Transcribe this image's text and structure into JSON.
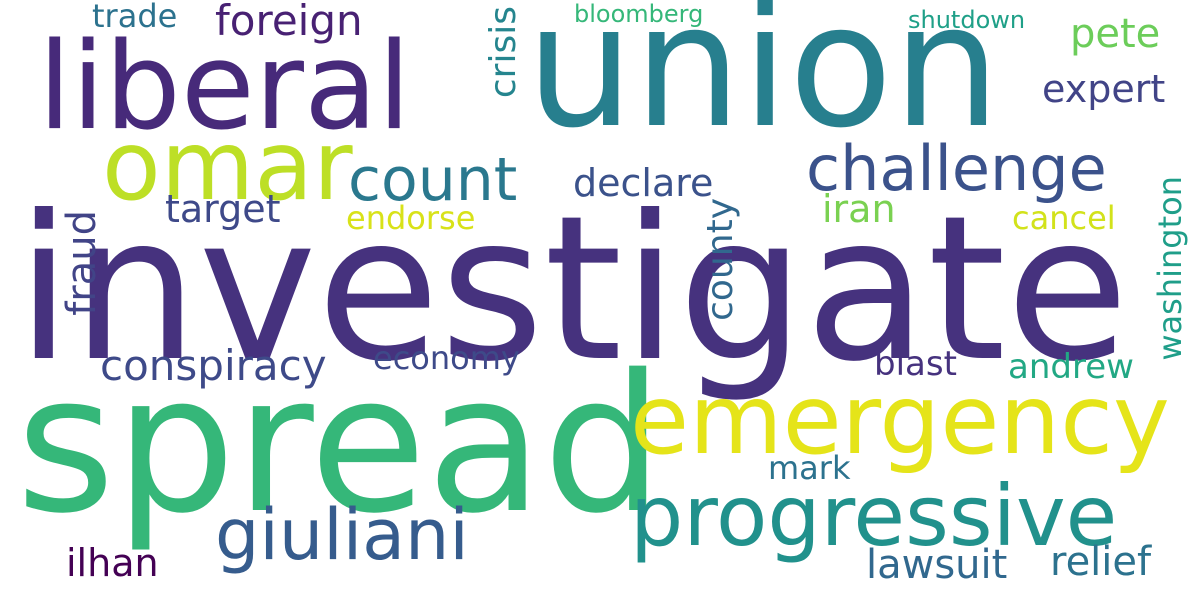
{
  "words": [
    {
      "text": "investigate",
      "color": "#46327e"
    },
    {
      "text": "union",
      "color": "#277f8e"
    },
    {
      "text": "spread",
      "color": "#35b779"
    },
    {
      "text": "liberal",
      "color": "#472a7a"
    },
    {
      "text": "emergency",
      "color": "#e5e419"
    },
    {
      "text": "progressive",
      "color": "#21918c"
    },
    {
      "text": "omar",
      "color": "#bddf26"
    },
    {
      "text": "challenge",
      "color": "#3b528b"
    },
    {
      "text": "giuliani",
      "color": "#365c8d"
    },
    {
      "text": "count",
      "color": "#2a788e"
    },
    {
      "text": "foreign",
      "color": "#482173"
    },
    {
      "text": "conspiracy",
      "color": "#3e4a89"
    },
    {
      "text": "fraud",
      "color": "#414487"
    },
    {
      "text": "washington",
      "color": "#1f9e89"
    },
    {
      "text": "declare",
      "color": "#3b528b"
    },
    {
      "text": "target",
      "color": "#3e4989"
    },
    {
      "text": "expert",
      "color": "#414487"
    },
    {
      "text": "pete",
      "color": "#6ccd5a"
    },
    {
      "text": "crisis",
      "color": "#25858e"
    },
    {
      "text": "iran",
      "color": "#7ad151"
    },
    {
      "text": "county",
      "color": "#31688e"
    },
    {
      "text": "economy",
      "color": "#3e4a89"
    },
    {
      "text": "lawsuit",
      "color": "#31688e"
    },
    {
      "text": "relief",
      "color": "#2c728e"
    },
    {
      "text": "ilhan",
      "color": "#440154"
    },
    {
      "text": "andrew",
      "color": "#22a884"
    },
    {
      "text": "trade",
      "color": "#2c728e"
    },
    {
      "text": "blast",
      "color": "#46327e"
    },
    {
      "text": "mark",
      "color": "#2c728e"
    },
    {
      "text": "cancel",
      "color": "#d2e21b"
    },
    {
      "text": "endorse",
      "color": "#d8e219"
    },
    {
      "text": "bloomberg",
      "color": "#35b779"
    },
    {
      "text": "shutdown",
      "color": "#1fa088"
    }
  ]
}
